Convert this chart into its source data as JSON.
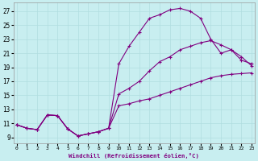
{
  "xlabel": "Windchill (Refroidissement éolien,°C)",
  "bg_color": "#c8eef0",
  "line_color": "#800080",
  "grid_color": "#b0dde0",
  "x_ticks": [
    0,
    1,
    2,
    3,
    4,
    5,
    6,
    7,
    8,
    9,
    10,
    11,
    12,
    13,
    14,
    15,
    16,
    17,
    18,
    19,
    20,
    21,
    22,
    23
  ],
  "y_ticks": [
    9,
    11,
    13,
    15,
    17,
    19,
    21,
    23,
    25,
    27
  ],
  "xlim": [
    -0.3,
    23.3
  ],
  "ylim": [
    8.2,
    28.2
  ],
  "curve1_x": [
    0,
    1,
    2,
    3,
    4,
    5,
    6,
    7,
    8,
    9,
    10,
    11,
    12,
    13,
    14,
    15,
    16,
    17,
    18,
    19,
    20,
    21,
    22,
    23
  ],
  "curve1_y": [
    10.8,
    10.3,
    10.1,
    12.2,
    12.1,
    10.2,
    9.2,
    9.5,
    9.8,
    10.3,
    13.5,
    13.8,
    14.2,
    14.5,
    15.0,
    15.5,
    16.0,
    16.5,
    17.0,
    17.5,
    17.8,
    18.0,
    18.1,
    18.2
  ],
  "curve2_x": [
    0,
    1,
    2,
    3,
    4,
    5,
    6,
    7,
    8,
    9,
    10,
    11,
    12,
    13,
    14,
    15,
    16,
    17,
    18,
    19,
    20,
    21,
    22,
    23
  ],
  "curve2_y": [
    10.8,
    10.3,
    10.1,
    12.2,
    12.1,
    10.2,
    9.2,
    9.5,
    9.8,
    10.3,
    19.5,
    22.0,
    24.0,
    26.0,
    26.5,
    27.2,
    27.4,
    27.0,
    26.0,
    23.0,
    21.0,
    21.5,
    20.5,
    19.2
  ],
  "curve3_x": [
    0,
    1,
    2,
    3,
    4,
    5,
    6,
    7,
    8,
    9,
    10,
    11,
    12,
    13,
    14,
    15,
    16,
    17,
    18,
    19,
    20,
    21,
    22,
    23
  ],
  "curve3_y": [
    10.8,
    10.3,
    10.1,
    12.2,
    12.1,
    10.2,
    9.2,
    9.5,
    9.8,
    10.3,
    15.2,
    16.0,
    17.0,
    18.5,
    19.8,
    20.5,
    21.5,
    22.0,
    22.5,
    22.8,
    22.2,
    21.5,
    20.0,
    19.5
  ]
}
